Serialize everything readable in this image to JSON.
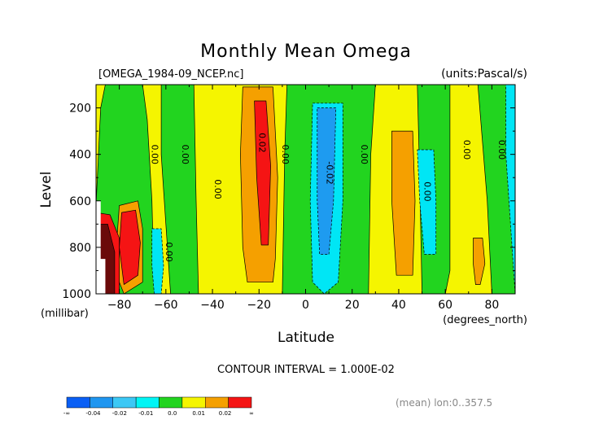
{
  "chart_data": {
    "type": "heatmap",
    "title": "Monthly Mean Omega",
    "file_label": "[OMEGA_1984-09_NCEP.nc]",
    "units_label": "(units:Pascal/s)",
    "xlabel": "Latitude",
    "x_unit_label": "(degrees_north)",
    "ylabel": "Level",
    "y_unit_label": "(millibar)",
    "xlim": [
      -90,
      90
    ],
    "ylim": [
      1000,
      100
    ],
    "x_ticks": [
      -80,
      -60,
      -40,
      -20,
      0,
      20,
      40,
      60,
      80
    ],
    "y_ticks": [
      200,
      400,
      600,
      800,
      1000
    ],
    "contour_interval_text": "CONTOUR INTERVAL = 1.000E-02",
    "mean_text": "(mean) lon:0..357.5",
    "colorbar": {
      "colors": [
        "#0a5ff5",
        "#1f96f0",
        "#3cc8f5",
        "#00f5f5",
        "#22d41f",
        "#f5f500",
        "#f5a000",
        "#f51414"
      ],
      "labels": [
        "-∞",
        "-0.04",
        "-0.02",
        "-0.01",
        "0.0",
        "0.01",
        "0.02",
        "∞"
      ]
    },
    "field_levels": {
      "yellow": 0.005,
      "orange": 0.015,
      "red": 0.025,
      "darkred": 0.04,
      "green": 0.0,
      "cyan": -0.01,
      "blue": -0.02
    },
    "contour_labels": [
      {
        "text": "0.00",
        "x": -66,
        "y": 400
      },
      {
        "text": "0.00",
        "x": -53,
        "y": 400
      },
      {
        "text": "0.00",
        "x": -39,
        "y": 550
      },
      {
        "text": "0.00",
        "x": -60,
        "y": 820
      },
      {
        "text": "0.02",
        "x": -20,
        "y": 350
      },
      {
        "text": "0.00",
        "x": -10,
        "y": 400
      },
      {
        "text": "-0.02",
        "x": 9,
        "y": 480
      },
      {
        "text": "0.00",
        "x": 24,
        "y": 400
      },
      {
        "text": "0.00",
        "x": 51,
        "y": 560
      },
      {
        "text": "0.00",
        "x": 68,
        "y": 380
      },
      {
        "text": "0.00",
        "x": 83,
        "y": 380
      }
    ],
    "features": [
      {
        "name": "background",
        "level": "yellow",
        "value": 0.005
      },
      {
        "name": "green-band-lat-77",
        "level": "green",
        "value": 0.0
      },
      {
        "name": "green-band-lat-52",
        "level": "green",
        "value": 0.0
      },
      {
        "name": "green-band-lat-0",
        "level": "green",
        "value": 0.0
      },
      {
        "name": "green-band-lat-55",
        "level": "green",
        "value": 0.0
      },
      {
        "name": "green-band-lat-79",
        "level": "green",
        "value": 0.0
      },
      {
        "name": "orange-cell-lat-20",
        "level": "orange",
        "value": 0.015
      },
      {
        "name": "red-core-lat-20",
        "level": "red",
        "value": 0.025
      },
      {
        "name": "orange-cell-lat-72",
        "level": "orange",
        "value": 0.015
      },
      {
        "name": "red-core-lat-72",
        "level": "red",
        "value": 0.025
      },
      {
        "name": "red-cell-lat-83",
        "level": "red",
        "value": 0.025
      },
      {
        "name": "darkred-core-lat-83",
        "level": "darkred",
        "value": 0.04
      },
      {
        "name": "cyan-cell-lat-9",
        "level": "cyan",
        "value": -0.01
      },
      {
        "name": "blue-core-lat-9",
        "level": "blue",
        "value": -0.02
      },
      {
        "name": "cyan-cell-lat-63",
        "level": "cyan",
        "value": -0.01
      },
      {
        "name": "cyan-cell-lat-53",
        "level": "cyan",
        "value": -0.01
      },
      {
        "name": "cyan-cell-lat-88",
        "level": "cyan",
        "value": -0.01
      },
      {
        "name": "orange-cell-lat-42",
        "level": "orange",
        "value": 0.015
      },
      {
        "name": "orange-cell-lat-74",
        "level": "orange",
        "value": 0.015
      }
    ]
  }
}
